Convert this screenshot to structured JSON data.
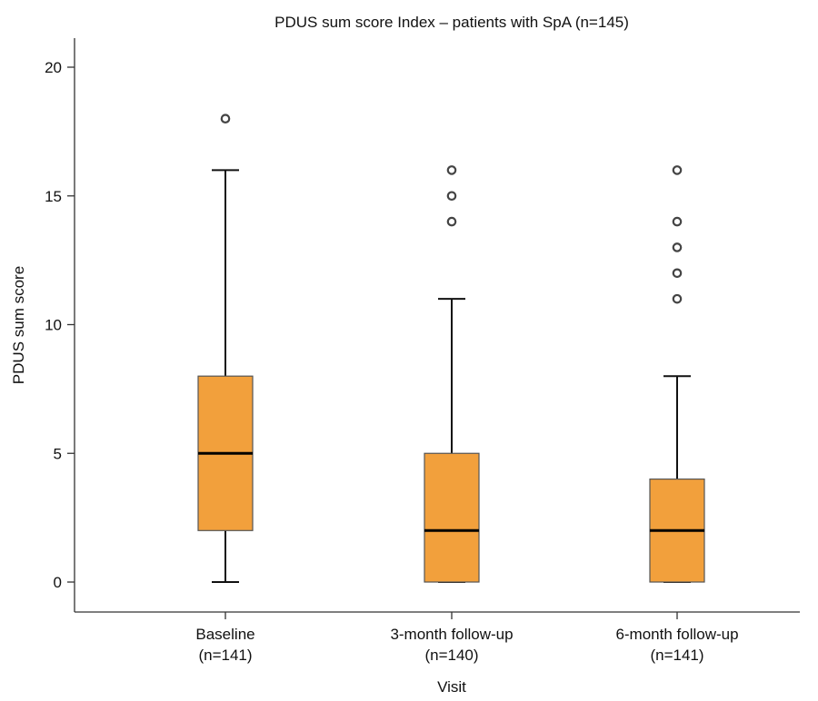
{
  "chart_data": {
    "type": "box",
    "title": "PDUS sum score Index – patients with SpA (n=145)",
    "xlabel": "Visit",
    "ylabel": "PDUS sum score",
    "ylim": [
      -1.1,
      21.1
    ],
    "yticks": [
      0,
      5,
      10,
      15,
      20
    ],
    "grid": false,
    "box_color": "#f2a03c",
    "box_edge_color": "#555555",
    "outlier_color": "#444444",
    "categories": [
      {
        "line1": "Baseline",
        "line2": "(n=141)"
      },
      {
        "line1": "3-month follow-up",
        "line2": "(n=140)"
      },
      {
        "line1": "6-month follow-up",
        "line2": "(n=141)"
      }
    ],
    "boxes": [
      {
        "whisker_low": 0,
        "q1": 2,
        "median": 5,
        "q3": 8,
        "whisker_high": 16,
        "outliers": [
          18
        ]
      },
      {
        "whisker_low": 0,
        "q1": 0,
        "median": 2,
        "q3": 5,
        "whisker_high": 11,
        "outliers": [
          14,
          15,
          16
        ]
      },
      {
        "whisker_low": 0,
        "q1": 0,
        "median": 2,
        "q3": 4,
        "whisker_high": 8,
        "outliers": [
          11,
          12,
          13,
          14,
          16
        ]
      }
    ]
  }
}
